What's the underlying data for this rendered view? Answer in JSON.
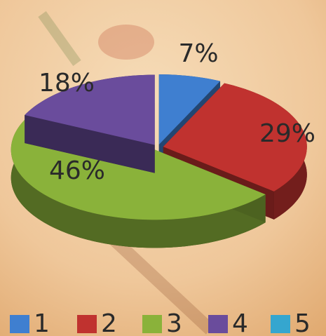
{
  "chart_data": {
    "type": "pie3d",
    "categories": [
      "1",
      "2",
      "3",
      "4",
      "5"
    ],
    "values": [
      7,
      29,
      46,
      18,
      0
    ],
    "value_labels": [
      "7%",
      "29%",
      "46%",
      "18%",
      null
    ],
    "colors": [
      "#3f7fd0",
      "#c0322f",
      "#8ab23a",
      "#6a4c9c",
      "#35a6cf"
    ],
    "legend": "bottom"
  }
}
